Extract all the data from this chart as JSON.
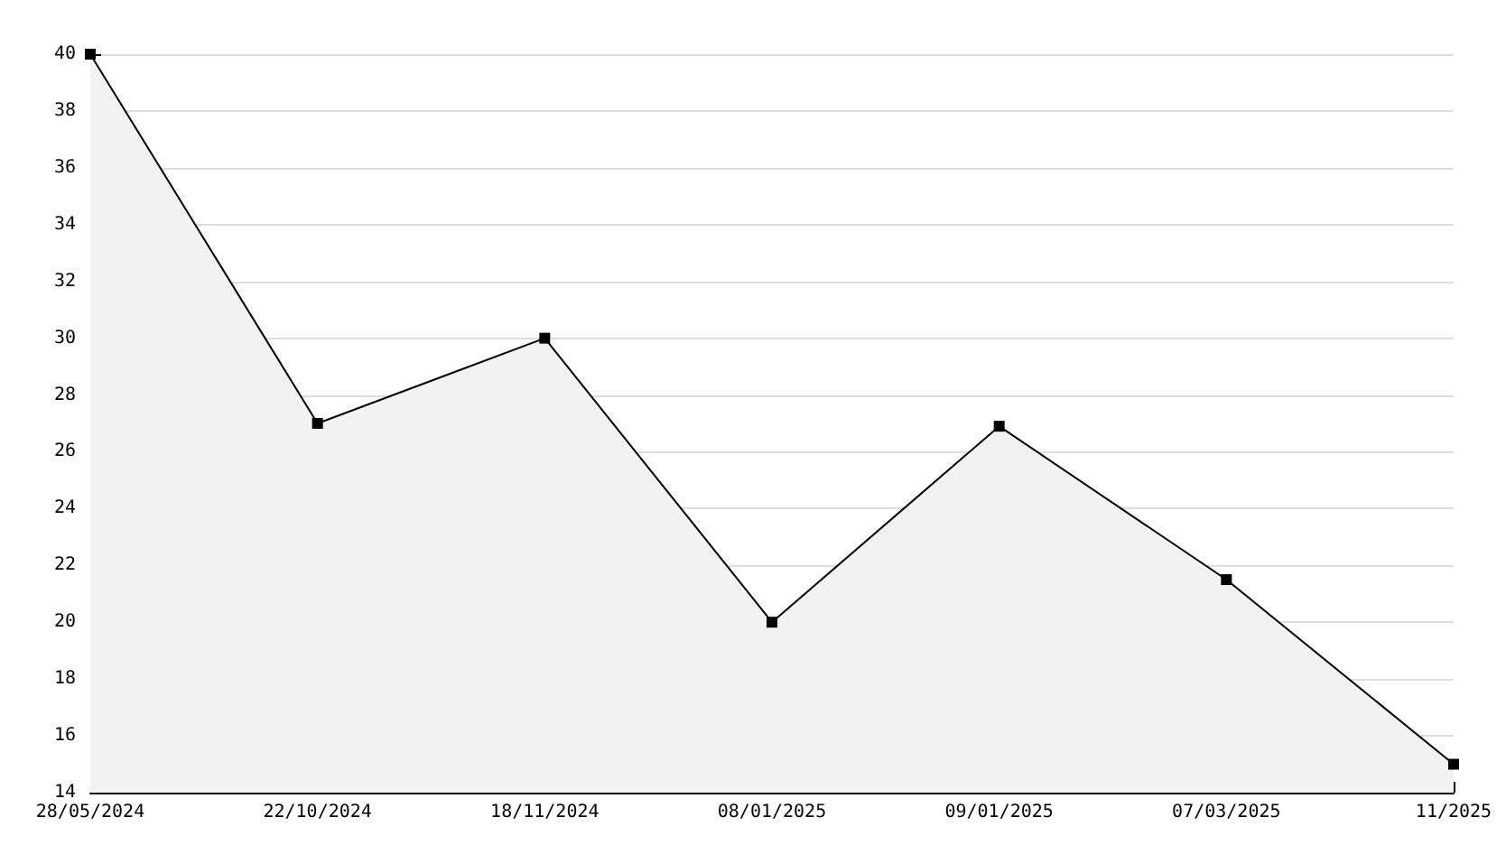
{
  "chart_data": {
    "type": "area",
    "categories": [
      "28/05/2024",
      "22/10/2024",
      "18/11/2024",
      "08/01/2025",
      "09/01/2025",
      "07/03/2025",
      "11/2025"
    ],
    "series": [
      {
        "color": "#000000",
        "values": [
          40,
          27,
          30,
          20,
          26.9,
          21.5,
          15
        ]
      }
    ],
    "ylim": [
      14,
      40
    ],
    "yticks": [
      14,
      16,
      18,
      20,
      22,
      24,
      26,
      28,
      30,
      32,
      34,
      36,
      38,
      40
    ],
    "grid": "y",
    "marker": "square",
    "line_style": "solid"
  }
}
